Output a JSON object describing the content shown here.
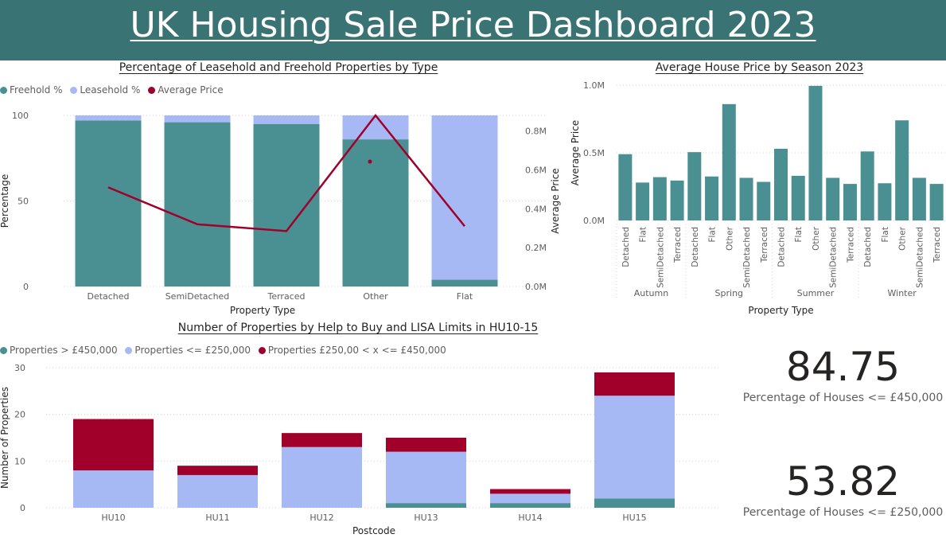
{
  "header": {
    "title": "UK Housing Sale Price Dashboard 2023"
  },
  "colors": {
    "teal": "#4a9093",
    "lavender": "#a6b9f4",
    "crimson": "#a0002a",
    "header_bg": "#3a7373"
  },
  "cards": [
    {
      "value": "84.75",
      "label": "Percentage of Houses <= £450,000"
    },
    {
      "value": "53.82",
      "label": "Percentage of Houses <= £250,000"
    }
  ],
  "chart_data": [
    {
      "id": "tenure",
      "type": "bar",
      "title": "Percentage of Leasehold and Freehold Properties by Type",
      "xlabel": "Property Type",
      "ylabel": "Percentage",
      "y2label": "Average Price",
      "categories": [
        "Detached",
        "SemiDetached",
        "Terraced",
        "Other",
        "Flat"
      ],
      "series": [
        {
          "name": "Freehold %",
          "kind": "bar",
          "stack": "pct",
          "color": "#4a9093",
          "values": [
            97,
            96,
            95,
            86,
            4
          ]
        },
        {
          "name": "Leasehold %",
          "kind": "bar",
          "stack": "pct",
          "color": "#a6b9f4",
          "values": [
            3,
            4,
            5,
            14,
            96
          ]
        },
        {
          "name": "Average Price",
          "kind": "line",
          "axis": "y2",
          "color": "#a0002a",
          "values": [
            510000,
            320000,
            285000,
            880000,
            310000
          ]
        }
      ],
      "ylim": [
        0,
        100
      ],
      "yticks": [
        0,
        50,
        100
      ],
      "ytick_labels": [
        "0",
        "50",
        "100"
      ],
      "y2lim": [
        0,
        880000
      ],
      "y2ticks": [
        0,
        200000,
        400000,
        600000,
        800000
      ],
      "y2tick_labels": [
        "0.0M",
        "0.2M",
        "0.4M",
        "0.6M",
        "0.8M"
      ],
      "extra_point": {
        "category": "Other",
        "value": 73
      },
      "grid": true,
      "legend_position": "top-left"
    },
    {
      "id": "season",
      "type": "bar",
      "title": "Average House Price by Season 2023",
      "xlabel": "Property Type",
      "ylabel": "Average Price",
      "groups": [
        {
          "name": "Autumn",
          "categories": [
            "Detached",
            "Flat",
            "SemiDetached",
            "Terraced"
          ],
          "values": [
            490000,
            280000,
            320000,
            295000
          ]
        },
        {
          "name": "Spring",
          "categories": [
            "Detached",
            "Flat",
            "Other",
            "SemiDetached",
            "Terraced"
          ],
          "values": [
            505000,
            325000,
            860000,
            315000,
            285000
          ]
        },
        {
          "name": "Summer",
          "categories": [
            "Detached",
            "Flat",
            "Other",
            "SemiDetached",
            "Terraced"
          ],
          "values": [
            530000,
            330000,
            995000,
            315000,
            270000
          ]
        },
        {
          "name": "Winter",
          "categories": [
            "Detached",
            "Flat",
            "Other",
            "SemiDetached",
            "Terraced"
          ],
          "values": [
            510000,
            275000,
            740000,
            315000,
            270000
          ]
        }
      ],
      "ylim": [
        0,
        1000000
      ],
      "yticks": [
        0,
        500000,
        1000000
      ],
      "ytick_labels": [
        "0.0M",
        "0.5M",
        "1.0M"
      ],
      "color": "#4a9093",
      "grid": true
    },
    {
      "id": "postcode",
      "type": "bar",
      "title": "Number of Properties by Help to Buy and LISA Limits in HU10-15",
      "xlabel": "Postcode",
      "ylabel": "Number of Properties",
      "categories": [
        "HU10",
        "HU11",
        "HU12",
        "HU13",
        "HU14",
        "HU15"
      ],
      "series": [
        {
          "name": "Properties > £450,000",
          "color": "#4a9093",
          "values": [
            0,
            0,
            0,
            1,
            1,
            2
          ]
        },
        {
          "name": "Properties <= £250,000",
          "color": "#a6b9f4",
          "values": [
            8,
            7,
            13,
            11,
            2,
            22
          ]
        },
        {
          "name": "Properties £250,00 < x <= £450,000",
          "color": "#a0002a",
          "values": [
            11,
            2,
            3,
            3,
            1,
            5
          ]
        }
      ],
      "ylim": [
        0,
        30
      ],
      "yticks": [
        0,
        10,
        20,
        30
      ],
      "ytick_labels": [
        "0",
        "10",
        "20",
        "30"
      ],
      "grid": true,
      "legend_position": "top-left"
    }
  ]
}
